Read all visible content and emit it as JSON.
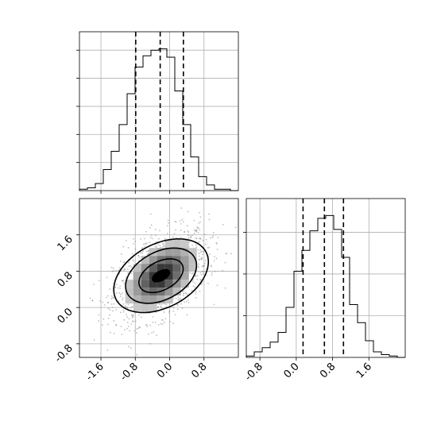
{
  "colors": {
    "axis": "#000000",
    "grid": "#b0b0b0",
    "scatter": "#8a8a8a",
    "contour": "#000000",
    "hist": "#000000",
    "quantile": "#000000"
  },
  "chart_data": [
    {
      "type": "histogram",
      "panel": "top-left",
      "variable": "x",
      "xlim": [
        -2.1,
        1.6
      ],
      "bins": [
        -2.1,
        -1.915,
        -1.73,
        -1.545,
        -1.36,
        -1.175,
        -0.99,
        -0.805,
        -0.62,
        -0.435,
        -0.25,
        -0.065,
        0.12,
        0.305,
        0.49,
        0.675,
        0.86,
        1.045,
        1.23,
        1.415,
        1.6
      ],
      "counts": [
        1,
        2,
        5,
        15,
        28,
        47,
        69,
        88,
        96,
        100,
        101,
        95,
        71,
        47,
        24,
        10,
        4,
        1,
        1,
        0
      ],
      "quantiles": [
        -0.79,
        -0.22,
        0.32
      ],
      "grid": true
    },
    {
      "type": "scatter",
      "panel": "bottom-left",
      "variables": [
        "x",
        "y"
      ],
      "xlim": [
        -2.1,
        1.6
      ],
      "ylim": [
        -1.1,
        2.4
      ],
      "xticks": [
        "-1.6",
        "-0.8",
        "0.0",
        "0.8"
      ],
      "yticks": [
        "-0.8",
        "0.0",
        "0.8",
        "1.6"
      ],
      "density_center": [
        -0.2,
        0.7
      ],
      "contour_levels": 4,
      "grid": true
    },
    {
      "type": "histogram",
      "panel": "bottom-right",
      "variable": "y",
      "xlim": [
        -1.1,
        2.4
      ],
      "bins": [
        -1.1,
        -0.925,
        -0.75,
        -0.575,
        -0.4,
        -0.225,
        -0.05,
        0.125,
        0.3,
        0.475,
        0.65,
        0.825,
        1.0,
        1.175,
        1.35,
        1.525,
        1.7,
        1.875,
        2.05,
        2.225,
        2.4
      ],
      "counts": [
        1,
        4,
        7,
        11,
        18,
        36,
        62,
        77,
        91,
        100,
        102,
        92,
        72,
        38,
        25,
        12,
        4,
        2,
        1,
        0
      ],
      "xticks": [
        "-0.8",
        "0.0",
        "0.8",
        "1.6"
      ],
      "quantiles": [
        0.15,
        0.62,
        1.04
      ],
      "grid": true
    }
  ]
}
